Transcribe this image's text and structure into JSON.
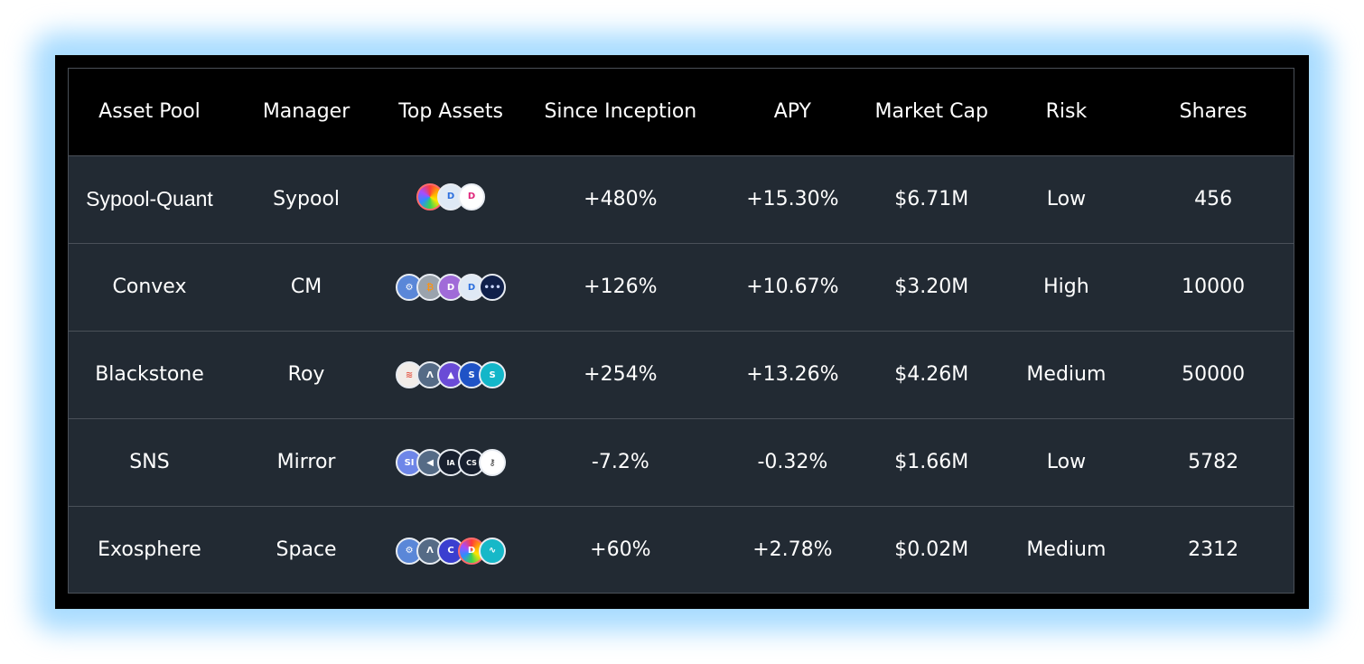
{
  "table": {
    "headers": [
      "Asset Pool",
      "Manager",
      "Top Assets",
      "Since Inception",
      "APY",
      "Market Cap",
      "Risk",
      "Shares"
    ],
    "rows": [
      {
        "pool": "Sypool-Quant",
        "manager": "Sypool",
        "assets": [
          {
            "icon": "rainbow-coin-icon",
            "glyph": ""
          },
          {
            "icon": "blue-drop-coin-icon",
            "glyph": "D"
          },
          {
            "icon": "pink-d-coin-icon",
            "glyph": "D"
          }
        ],
        "since_inception": "+480%",
        "apy": "+15.30%",
        "market_cap": "$6.71M",
        "risk": "Low",
        "shares": "456"
      },
      {
        "pool": "Convex",
        "manager": "CM",
        "assets": [
          {
            "icon": "gear-coin-icon",
            "glyph": "⚙"
          },
          {
            "icon": "bitcoin-coin-icon",
            "glyph": "₿"
          },
          {
            "icon": "purple-coin-icon",
            "glyph": "D"
          },
          {
            "icon": "blue-d-coin-icon",
            "glyph": "D"
          },
          {
            "icon": "navy-coin-icon",
            "glyph": "•••"
          }
        ],
        "since_inception": "+126%",
        "apy": "+10.67%",
        "market_cap": "$3.20M",
        "risk": "High",
        "shares": "10000"
      },
      {
        "pool": "Blackstone",
        "manager": "Roy",
        "assets": [
          {
            "icon": "salmon-coin-icon",
            "glyph": "≋"
          },
          {
            "icon": "slate-peak-coin-icon",
            "glyph": "Λ"
          },
          {
            "icon": "violet-peak-coin-icon",
            "glyph": "▲"
          },
          {
            "icon": "blue-s-coin-icon",
            "glyph": "S"
          },
          {
            "icon": "teal-s-coin-icon",
            "glyph": "S"
          }
        ],
        "since_inception": "+254%",
        "apy": "+13.26%",
        "market_cap": "$4.26M",
        "risk": "Medium",
        "shares": "50000"
      },
      {
        "pool": "SNS",
        "manager": "Mirror",
        "assets": [
          {
            "icon": "si-coin-icon",
            "glyph": "SI"
          },
          {
            "icon": "arrow-coin-icon",
            "glyph": "◀"
          },
          {
            "icon": "dark-ia-coin-icon",
            "glyph": "IA"
          },
          {
            "icon": "dark-cs-coin-icon",
            "glyph": "CS"
          },
          {
            "icon": "white-key-coin-icon",
            "glyph": "⚷"
          }
        ],
        "since_inception": "-7.2%",
        "apy": "-0.32%",
        "market_cap": "$1.66M",
        "risk": "Low",
        "shares": "5782"
      },
      {
        "pool": "Exosphere",
        "manager": "Space",
        "assets": [
          {
            "icon": "gear-coin-icon",
            "glyph": "⚙"
          },
          {
            "icon": "slate-peak-coin-icon",
            "glyph": "Λ"
          },
          {
            "icon": "indigo-c-coin-icon",
            "glyph": "C"
          },
          {
            "icon": "rainbow-d-coin-icon",
            "glyph": "D"
          },
          {
            "icon": "cyan-wave-coin-icon",
            "glyph": "∿"
          }
        ],
        "since_inception": "+60%",
        "apy": "+2.78%",
        "market_cap": "$0.02M",
        "risk": "Medium",
        "shares": "2312"
      }
    ]
  },
  "colors": {
    "frame": "#000000",
    "table_body": "#222a33",
    "glow": "#a9dcff",
    "text": "#ffffff"
  }
}
